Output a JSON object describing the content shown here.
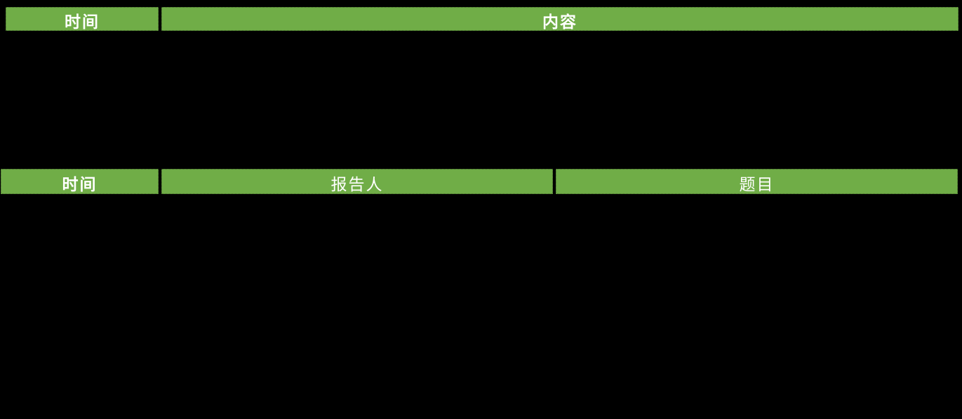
{
  "slide": {
    "background_color": "#000000"
  },
  "theme": {
    "header_fill_color": "#70AD47",
    "header_text_color": "#FFFFFF"
  },
  "tables": {
    "content_table": {
      "columns": [
        {
          "label": "时间"
        },
        {
          "label": "内容"
        }
      ]
    },
    "talks_table": {
      "columns": [
        {
          "label": "时间"
        },
        {
          "label": "报告人"
        },
        {
          "label": "题目"
        }
      ]
    }
  }
}
